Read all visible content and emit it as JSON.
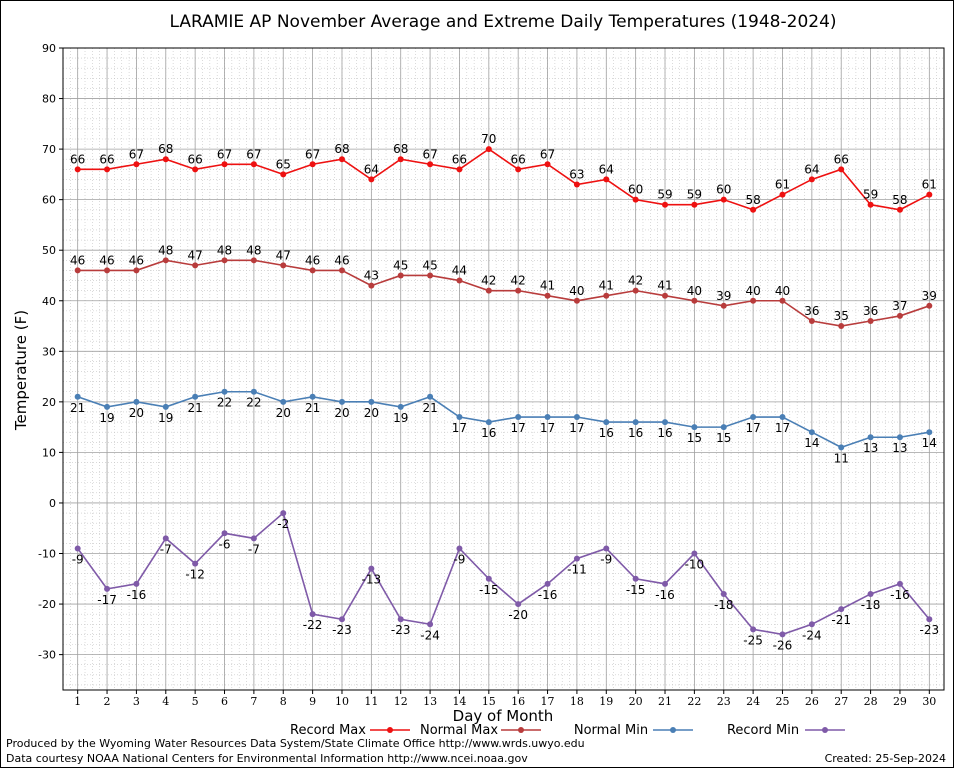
{
  "chart_data": {
    "type": "line",
    "title": "LARAMIE AP November Average and Extreme Daily Temperatures (1948-2024)",
    "xlabel": "Day of Month",
    "ylabel": "Temperature (F)",
    "ylim": [
      -37,
      90
    ],
    "yticks": [
      -30,
      -20,
      -10,
      0,
      10,
      20,
      30,
      40,
      50,
      60,
      70,
      80,
      90
    ],
    "xlim": [
      0.5,
      30.5
    ],
    "x": [
      1,
      2,
      3,
      4,
      5,
      6,
      7,
      8,
      9,
      10,
      11,
      12,
      13,
      14,
      15,
      16,
      17,
      18,
      19,
      20,
      21,
      22,
      23,
      24,
      25,
      26,
      27,
      28,
      29,
      30
    ],
    "grid": true,
    "legend_position": "bottom",
    "series": [
      {
        "name": "Record Max",
        "color": "#ee1111",
        "label_pos": "above",
        "values": [
          66,
          66,
          67,
          68,
          66,
          67,
          67,
          65,
          67,
          68,
          64,
          68,
          67,
          66,
          70,
          66,
          67,
          63,
          64,
          60,
          59,
          59,
          60,
          58,
          61,
          64,
          66,
          59,
          58,
          61
        ]
      },
      {
        "name": "Normal Max",
        "color": "#b83c3c",
        "label_pos": "above",
        "values": [
          46,
          46,
          46,
          48,
          47,
          48,
          48,
          47,
          46,
          46,
          43,
          45,
          45,
          44,
          42,
          42,
          41,
          40,
          41,
          42,
          41,
          40,
          39,
          40,
          40,
          36,
          35,
          36,
          37,
          39
        ]
      },
      {
        "name": "Normal Min",
        "color": "#4a7fb5",
        "label_pos": "below",
        "values": [
          21,
          19,
          20,
          19,
          21,
          22,
          22,
          20,
          21,
          20,
          20,
          19,
          21,
          17,
          16,
          17,
          17,
          17,
          16,
          16,
          16,
          15,
          15,
          17,
          17,
          14,
          11,
          13,
          13,
          14
        ]
      },
      {
        "name": "Record Min",
        "color": "#7f5aa8",
        "label_pos": "below",
        "values": [
          -9,
          -17,
          -16,
          -7,
          -12,
          -6,
          -7,
          -2,
          -22,
          -23,
          -13,
          -23,
          -24,
          -9,
          -15,
          -20,
          -16,
          -11,
          -9,
          -15,
          -16,
          -10,
          -18,
          -25,
          -26,
          -24,
          -21,
          -18,
          -16,
          -23
        ]
      }
    ]
  },
  "footer": {
    "line1": "Produced by the Wyoming Water Resources Data System/State Climate Office http://www.wrds.uwyo.edu",
    "line2": "Data courtesy NOAA National Centers for Environmental Information http://www.ncei.noaa.gov",
    "created": "Created:  25-Sep-2024"
  }
}
